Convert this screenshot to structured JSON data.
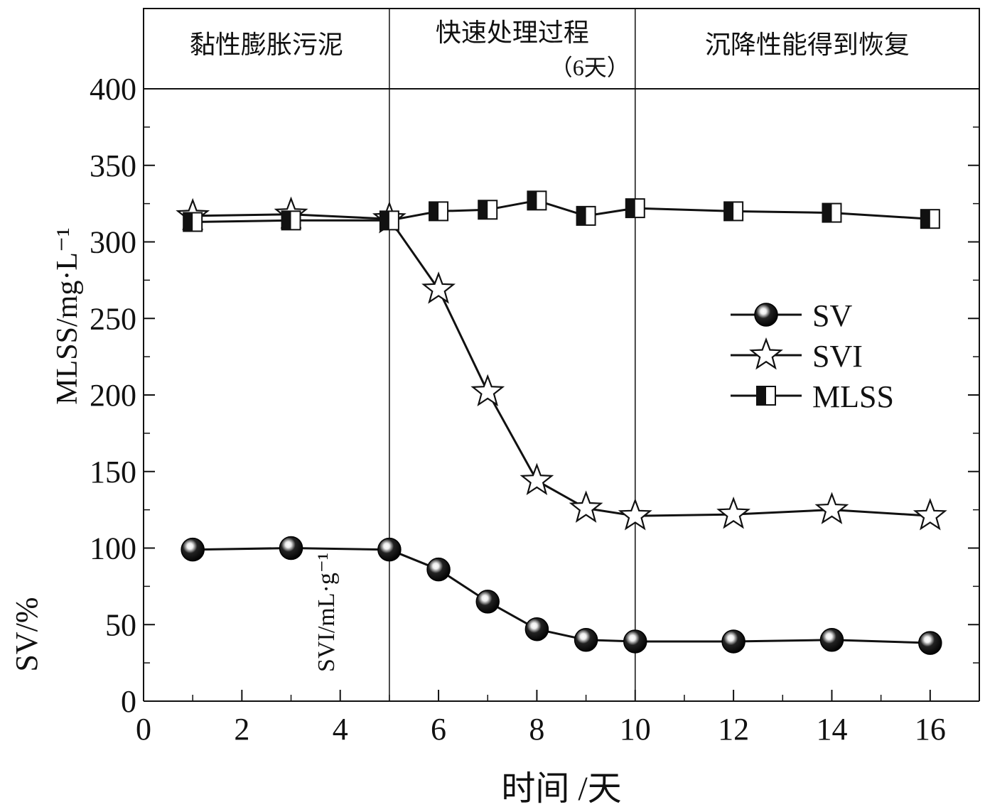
{
  "chart_data": {
    "type": "line",
    "xlabel": "时间 /天",
    "ylabel_main": "MLSS/mg·L⁻¹",
    "ylabel_svi": "SVI/mL·g⁻¹",
    "ylabel_sv": "SV/%",
    "xlim": [
      0,
      17
    ],
    "ylim": [
      0,
      400
    ],
    "xticks": [
      "0",
      "2",
      "4",
      "6",
      "8",
      "10",
      "12",
      "14",
      "16"
    ],
    "yticks": [
      "0",
      "50",
      "100",
      "150",
      "200",
      "250",
      "300",
      "350",
      "400"
    ],
    "phase_boundaries": [
      5,
      10
    ],
    "phases": [
      {
        "label": "黏性膨胀污泥"
      },
      {
        "label": "快速处理过程"
      },
      {
        "label": "沉降性能得到恢复"
      }
    ],
    "phase_note": "（6天）",
    "series": [
      {
        "name": "SV",
        "marker": "ball",
        "x": [
          1,
          3,
          5,
          6,
          7,
          8,
          9,
          10,
          12,
          14,
          16
        ],
        "values": [
          99,
          100,
          99,
          86,
          65,
          47,
          40,
          39,
          39,
          40,
          38
        ]
      },
      {
        "name": "SVI",
        "marker": "star",
        "x": [
          1,
          3,
          5,
          6,
          7,
          8,
          9,
          10,
          12,
          14,
          16
        ],
        "values": [
          317,
          318,
          315,
          269,
          202,
          144,
          126,
          121,
          122,
          125,
          121
        ]
      },
      {
        "name": "MLSS",
        "marker": "halfsquare",
        "x": [
          1,
          3,
          5,
          6,
          7,
          8,
          9,
          10,
          12,
          14,
          16
        ],
        "values": [
          313,
          314,
          314,
          320,
          321,
          327,
          317,
          322,
          320,
          319,
          315
        ]
      }
    ],
    "legend_position": "center-right",
    "grid": false
  }
}
